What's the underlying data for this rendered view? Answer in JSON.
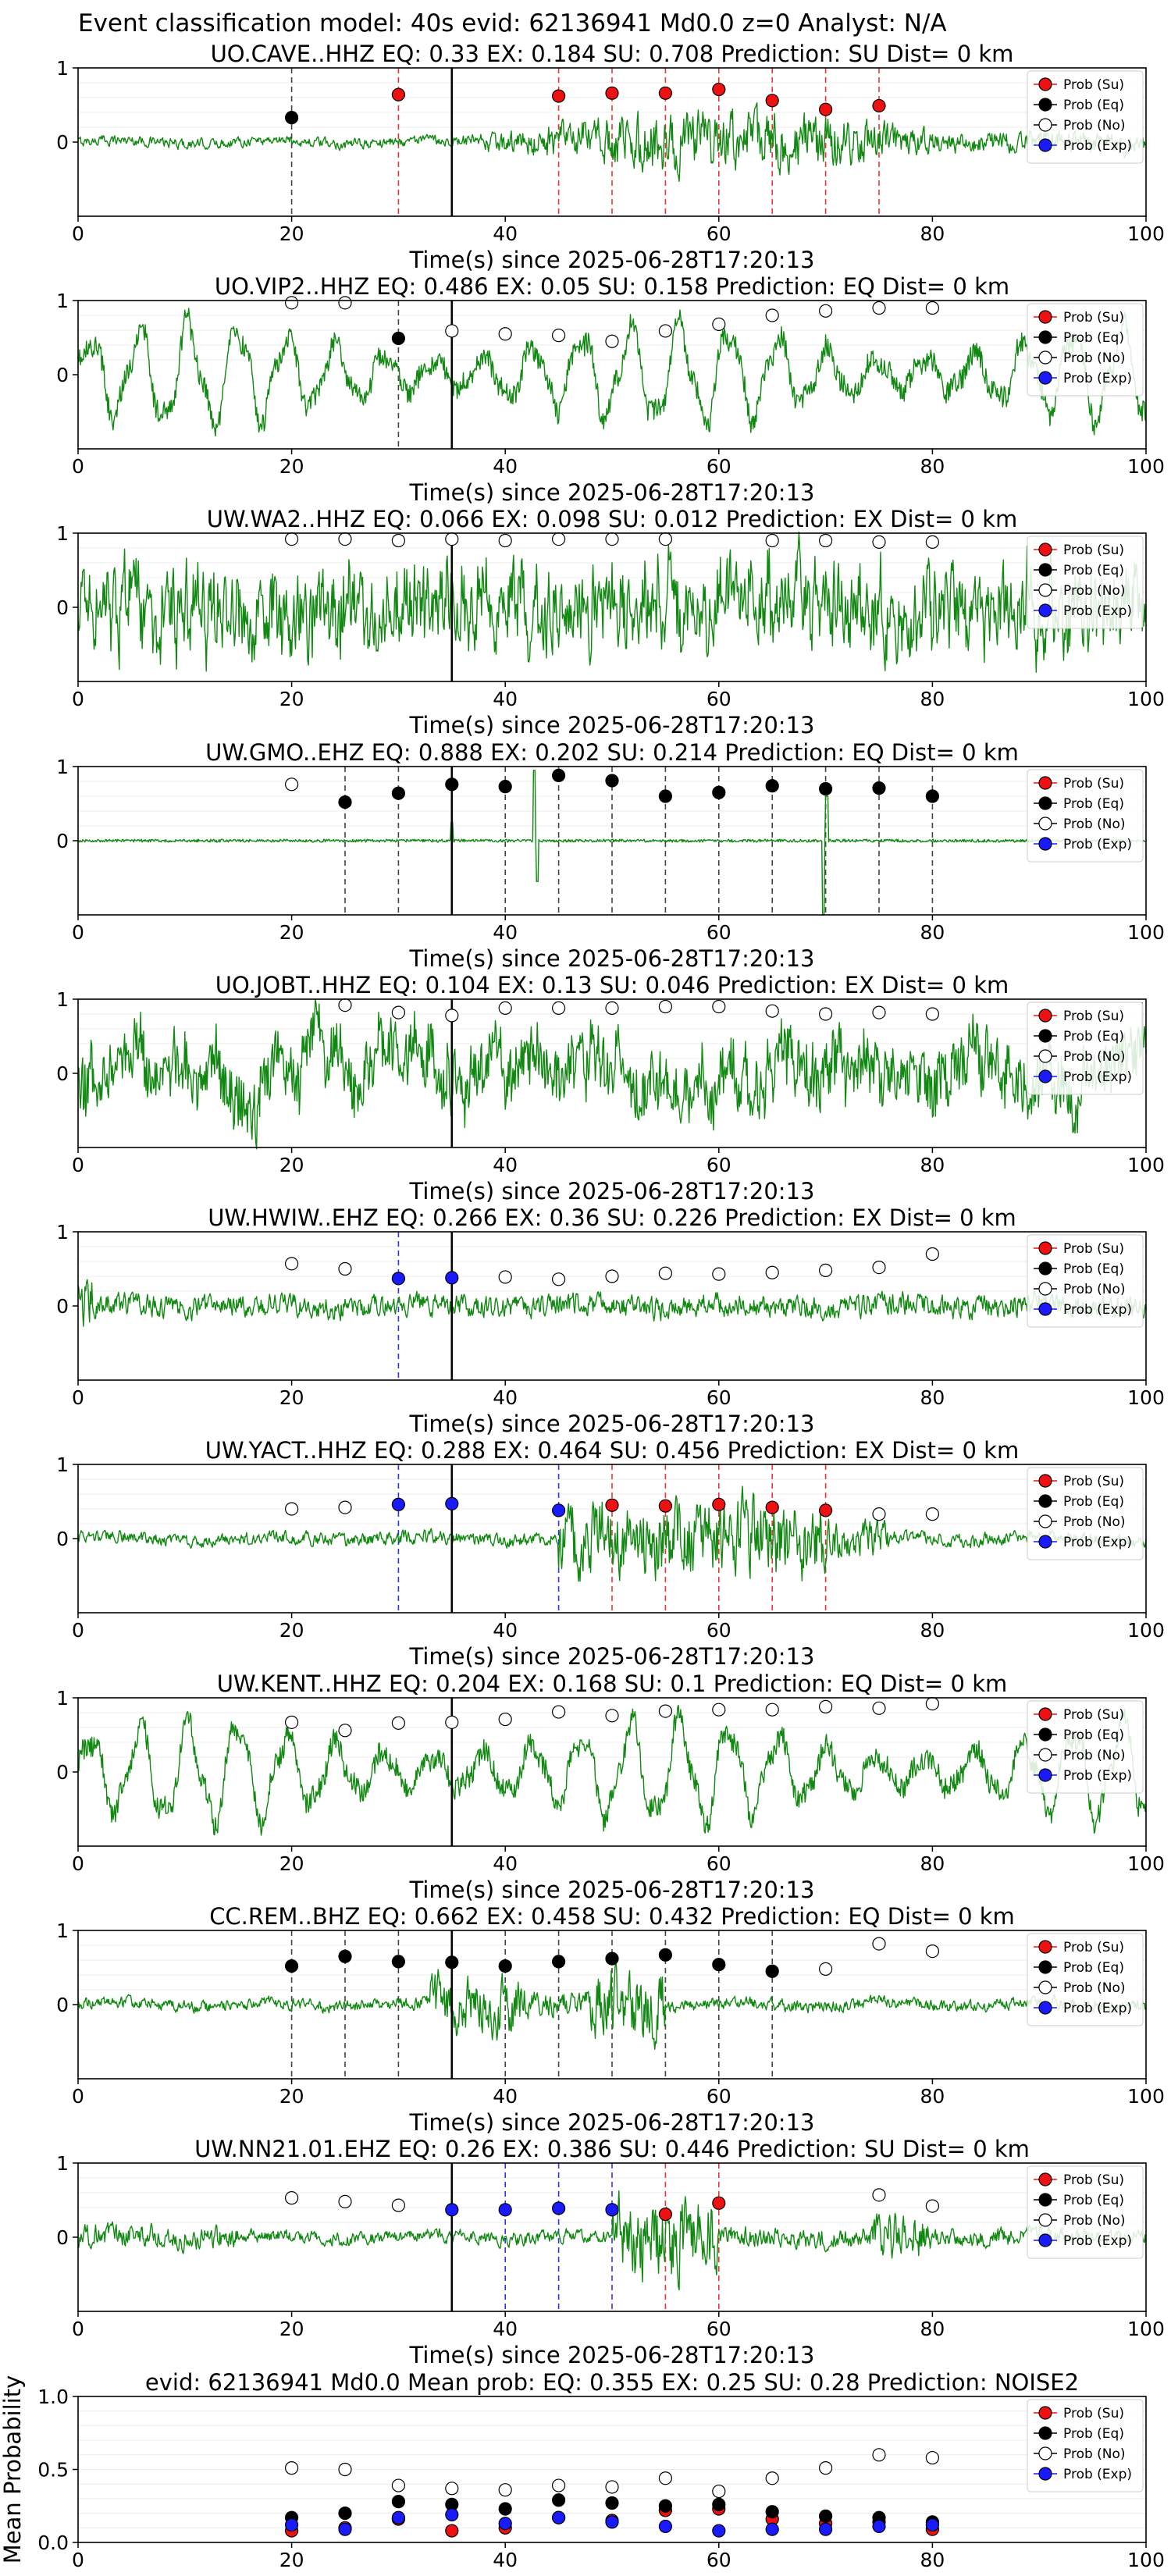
{
  "figure_title": "Event classification model: 40s evid: 62136941 Md0.0 z=0 Analyst: N/A",
  "xlabel": "Time(s) since 2025-06-28T17:20:13",
  "legend": [
    "Prob (Su)",
    "Prob (Eq)",
    "Prob (No)",
    "Prob (Exp)"
  ],
  "colors": {
    "su": "#ee1111",
    "eq": "#000000",
    "no": "#ffffff",
    "exp": "#1a1aff",
    "trace": "#118811"
  },
  "chart_data": [
    {
      "type": "line",
      "title": "UO.CAVE..HHZ   EQ: 0.33  EX: 0.184  SU: 0.708   Prediction: SU    Dist= 0 km",
      "xlim": [
        0,
        100
      ],
      "ylim": [
        -1,
        1
      ],
      "yticks": [
        "0",
        "1"
      ],
      "grid": true,
      "legend_position": "top-right",
      "pick_time": 35,
      "amplitude": 0.55,
      "character": "event-mid",
      "points": [
        {
          "x": 20,
          "y": 0.33,
          "cls": "eq"
        },
        {
          "x": 30,
          "y": 0.64,
          "cls": "su"
        },
        {
          "x": 45,
          "y": 0.62,
          "cls": "su"
        },
        {
          "x": 50,
          "y": 0.66,
          "cls": "su"
        },
        {
          "x": 55,
          "y": 0.66,
          "cls": "su"
        },
        {
          "x": 60,
          "y": 0.71,
          "cls": "su"
        },
        {
          "x": 65,
          "y": 0.56,
          "cls": "su"
        },
        {
          "x": 70,
          "y": 0.44,
          "cls": "su"
        },
        {
          "x": 75,
          "y": 0.49,
          "cls": "su"
        }
      ]
    },
    {
      "type": "line",
      "title": "UO.VIP2..HHZ   EQ: 0.486  EX: 0.05  SU: 0.158   Prediction: EQ    Dist= 0 km",
      "xlim": [
        0,
        100
      ],
      "ylim": [
        -1,
        1
      ],
      "yticks": [
        "0",
        "1"
      ],
      "grid": true,
      "legend_position": "top-right",
      "pick_time": 35,
      "amplitude": 0.85,
      "character": "oscillation",
      "points": [
        {
          "x": 20,
          "y": 0.97,
          "cls": "no"
        },
        {
          "x": 25,
          "y": 0.97,
          "cls": "no"
        },
        {
          "x": 30,
          "y": 0.49,
          "cls": "eq"
        },
        {
          "x": 35,
          "y": 0.59,
          "cls": "no"
        },
        {
          "x": 40,
          "y": 0.55,
          "cls": "no"
        },
        {
          "x": 45,
          "y": 0.53,
          "cls": "no"
        },
        {
          "x": 50,
          "y": 0.45,
          "cls": "no"
        },
        {
          "x": 55,
          "y": 0.59,
          "cls": "no"
        },
        {
          "x": 60,
          "y": 0.68,
          "cls": "no"
        },
        {
          "x": 65,
          "y": 0.8,
          "cls": "no"
        },
        {
          "x": 70,
          "y": 0.86,
          "cls": "no"
        },
        {
          "x": 75,
          "y": 0.9,
          "cls": "no"
        },
        {
          "x": 80,
          "y": 0.9,
          "cls": "no"
        }
      ]
    },
    {
      "type": "line",
      "title": "UW.WA2..HHZ   EQ: 0.066  EX: 0.098  SU: 0.012   Prediction: EX    Dist= 0 km",
      "xlim": [
        0,
        100
      ],
      "ylim": [
        -1,
        1
      ],
      "yticks": [
        "0",
        "1"
      ],
      "grid": true,
      "legend_position": "top-right",
      "pick_time": 35,
      "amplitude": 0.7,
      "character": "noise",
      "points": [
        {
          "x": 20,
          "y": 0.92,
          "cls": "no"
        },
        {
          "x": 25,
          "y": 0.92,
          "cls": "no"
        },
        {
          "x": 30,
          "y": 0.9,
          "cls": "no"
        },
        {
          "x": 35,
          "y": 0.92,
          "cls": "no"
        },
        {
          "x": 40,
          "y": 0.9,
          "cls": "no"
        },
        {
          "x": 45,
          "y": 0.92,
          "cls": "no"
        },
        {
          "x": 50,
          "y": 0.92,
          "cls": "no"
        },
        {
          "x": 55,
          "y": 0.92,
          "cls": "no"
        },
        {
          "x": 65,
          "y": 0.9,
          "cls": "no"
        },
        {
          "x": 70,
          "y": 0.9,
          "cls": "no"
        },
        {
          "x": 75,
          "y": 0.88,
          "cls": "no"
        },
        {
          "x": 80,
          "y": 0.88,
          "cls": "no"
        }
      ]
    },
    {
      "type": "line",
      "title": "UW.GMO..EHZ   EQ: 0.888  EX: 0.202  SU: 0.214   Prediction: EQ    Dist= 0 km",
      "xlim": [
        0,
        100
      ],
      "ylim": [
        -1,
        1
      ],
      "yticks": [
        "0",
        "1"
      ],
      "grid": true,
      "legend_position": "top-right",
      "pick_time": 35,
      "amplitude": 0.04,
      "character": "quiet-spikes",
      "points": [
        {
          "x": 20,
          "y": 0.76,
          "cls": "no"
        },
        {
          "x": 25,
          "y": 0.52,
          "cls": "eq"
        },
        {
          "x": 30,
          "y": 0.64,
          "cls": "eq"
        },
        {
          "x": 35,
          "y": 0.76,
          "cls": "eq"
        },
        {
          "x": 40,
          "y": 0.73,
          "cls": "eq"
        },
        {
          "x": 45,
          "y": 0.88,
          "cls": "eq"
        },
        {
          "x": 50,
          "y": 0.81,
          "cls": "eq"
        },
        {
          "x": 55,
          "y": 0.6,
          "cls": "eq"
        },
        {
          "x": 60,
          "y": 0.65,
          "cls": "eq"
        },
        {
          "x": 65,
          "y": 0.74,
          "cls": "eq"
        },
        {
          "x": 70,
          "y": 0.7,
          "cls": "eq"
        },
        {
          "x": 75,
          "y": 0.71,
          "cls": "eq"
        },
        {
          "x": 80,
          "y": 0.6,
          "cls": "eq"
        }
      ]
    },
    {
      "type": "line",
      "title": "UO.JOBT..HHZ   EQ: 0.104  EX: 0.13  SU: 0.046   Prediction: EX    Dist= 0 km",
      "xlim": [
        0,
        100
      ],
      "ylim": [
        -1,
        1
      ],
      "yticks": [
        "0",
        "1"
      ],
      "grid": true,
      "legend_position": "top-right",
      "pick_time": 35,
      "amplitude": 0.75,
      "character": "noise-slow",
      "points": [
        {
          "x": 25,
          "y": 0.92,
          "cls": "no"
        },
        {
          "x": 30,
          "y": 0.82,
          "cls": "no"
        },
        {
          "x": 35,
          "y": 0.78,
          "cls": "no"
        },
        {
          "x": 40,
          "y": 0.88,
          "cls": "no"
        },
        {
          "x": 45,
          "y": 0.88,
          "cls": "no"
        },
        {
          "x": 50,
          "y": 0.88,
          "cls": "no"
        },
        {
          "x": 55,
          "y": 0.9,
          "cls": "no"
        },
        {
          "x": 60,
          "y": 0.9,
          "cls": "no"
        },
        {
          "x": 65,
          "y": 0.84,
          "cls": "no"
        },
        {
          "x": 70,
          "y": 0.8,
          "cls": "no"
        },
        {
          "x": 75,
          "y": 0.82,
          "cls": "no"
        },
        {
          "x": 80,
          "y": 0.8,
          "cls": "no"
        }
      ]
    },
    {
      "type": "line",
      "title": "UW.HWIW..EHZ   EQ: 0.266  EX: 0.36  SU: 0.226   Prediction: EX    Dist= 0 km",
      "xlim": [
        0,
        100
      ],
      "ylim": [
        -1,
        1
      ],
      "yticks": [
        "0",
        "1"
      ],
      "grid": true,
      "legend_position": "top-right",
      "pick_time": 35,
      "amplitude": 0.22,
      "character": "low-noise",
      "points": [
        {
          "x": 20,
          "y": 0.57,
          "cls": "no"
        },
        {
          "x": 25,
          "y": 0.5,
          "cls": "no"
        },
        {
          "x": 30,
          "y": 0.37,
          "cls": "exp"
        },
        {
          "x": 35,
          "y": 0.38,
          "cls": "exp"
        },
        {
          "x": 40,
          "y": 0.39,
          "cls": "no"
        },
        {
          "x": 45,
          "y": 0.36,
          "cls": "no"
        },
        {
          "x": 50,
          "y": 0.4,
          "cls": "no"
        },
        {
          "x": 55,
          "y": 0.44,
          "cls": "no"
        },
        {
          "x": 60,
          "y": 0.43,
          "cls": "no"
        },
        {
          "x": 65,
          "y": 0.45,
          "cls": "no"
        },
        {
          "x": 70,
          "y": 0.48,
          "cls": "no"
        },
        {
          "x": 75,
          "y": 0.52,
          "cls": "no"
        },
        {
          "x": 80,
          "y": 0.7,
          "cls": "no"
        }
      ]
    },
    {
      "type": "line",
      "title": "UW.YACT..HHZ   EQ: 0.288  EX: 0.464  SU: 0.456   Prediction: EX    Dist= 0 km",
      "xlim": [
        0,
        100
      ],
      "ylim": [
        -1,
        1
      ],
      "yticks": [
        "0",
        "1"
      ],
      "grid": true,
      "legend_position": "top-right",
      "pick_time": 35,
      "amplitude": 0.18,
      "character": "burst-late",
      "points": [
        {
          "x": 20,
          "y": 0.4,
          "cls": "no"
        },
        {
          "x": 25,
          "y": 0.42,
          "cls": "no"
        },
        {
          "x": 30,
          "y": 0.46,
          "cls": "exp"
        },
        {
          "x": 35,
          "y": 0.47,
          "cls": "exp"
        },
        {
          "x": 45,
          "y": 0.38,
          "cls": "exp"
        },
        {
          "x": 50,
          "y": 0.45,
          "cls": "su"
        },
        {
          "x": 55,
          "y": 0.44,
          "cls": "su"
        },
        {
          "x": 60,
          "y": 0.46,
          "cls": "su"
        },
        {
          "x": 65,
          "y": 0.42,
          "cls": "su"
        },
        {
          "x": 70,
          "y": 0.38,
          "cls": "su"
        },
        {
          "x": 75,
          "y": 0.33,
          "cls": "no"
        },
        {
          "x": 80,
          "y": 0.33,
          "cls": "no"
        }
      ]
    },
    {
      "type": "line",
      "title": "UW.KENT..HHZ   EQ: 0.204  EX: 0.168  SU: 0.1   Prediction: EQ    Dist= 0 km",
      "xlim": [
        0,
        100
      ],
      "ylim": [
        -1,
        1
      ],
      "yticks": [
        "0",
        "1"
      ],
      "grid": true,
      "legend_position": "top-right",
      "pick_time": 35,
      "amplitude": 0.85,
      "character": "oscillation",
      "points": [
        {
          "x": 20,
          "y": 0.67,
          "cls": "no"
        },
        {
          "x": 25,
          "y": 0.56,
          "cls": "no"
        },
        {
          "x": 30,
          "y": 0.66,
          "cls": "no"
        },
        {
          "x": 35,
          "y": 0.67,
          "cls": "no"
        },
        {
          "x": 40,
          "y": 0.71,
          "cls": "no"
        },
        {
          "x": 45,
          "y": 0.81,
          "cls": "no"
        },
        {
          "x": 50,
          "y": 0.76,
          "cls": "no"
        },
        {
          "x": 55,
          "y": 0.82,
          "cls": "no"
        },
        {
          "x": 60,
          "y": 0.84,
          "cls": "no"
        },
        {
          "x": 65,
          "y": 0.84,
          "cls": "no"
        },
        {
          "x": 70,
          "y": 0.88,
          "cls": "no"
        },
        {
          "x": 75,
          "y": 0.86,
          "cls": "no"
        },
        {
          "x": 80,
          "y": 0.92,
          "cls": "no"
        }
      ]
    },
    {
      "type": "line",
      "title": "CC.REM..BHZ   EQ: 0.662  EX: 0.458  SU: 0.432   Prediction: EQ    Dist= 0 km",
      "xlim": [
        0,
        100
      ],
      "ylim": [
        -1,
        1
      ],
      "yticks": [
        "0",
        "1"
      ],
      "grid": true,
      "legend_position": "top-right",
      "pick_time": 35,
      "amplitude": 0.12,
      "character": "event-early",
      "points": [
        {
          "x": 20,
          "y": 0.52,
          "cls": "eq"
        },
        {
          "x": 25,
          "y": 0.65,
          "cls": "eq"
        },
        {
          "x": 30,
          "y": 0.58,
          "cls": "eq"
        },
        {
          "x": 35,
          "y": 0.57,
          "cls": "eq"
        },
        {
          "x": 40,
          "y": 0.52,
          "cls": "eq"
        },
        {
          "x": 45,
          "y": 0.58,
          "cls": "eq"
        },
        {
          "x": 50,
          "y": 0.62,
          "cls": "eq"
        },
        {
          "x": 55,
          "y": 0.67,
          "cls": "eq"
        },
        {
          "x": 60,
          "y": 0.54,
          "cls": "eq"
        },
        {
          "x": 65,
          "y": 0.45,
          "cls": "eq"
        },
        {
          "x": 70,
          "y": 0.48,
          "cls": "no"
        },
        {
          "x": 75,
          "y": 0.82,
          "cls": "no"
        },
        {
          "x": 80,
          "y": 0.72,
          "cls": "no"
        }
      ]
    },
    {
      "type": "line",
      "title": "UW.NN21.01.EHZ   EQ: 0.26  EX: 0.386  SU: 0.446   Prediction: SU    Dist= 0 km",
      "xlim": [
        0,
        100
      ],
      "ylim": [
        -1,
        1
      ],
      "yticks": [
        "0",
        "1"
      ],
      "grid": true,
      "legend_position": "top-right",
      "pick_time": 35,
      "amplitude": 0.14,
      "character": "burst-mid",
      "points": [
        {
          "x": 20,
          "y": 0.53,
          "cls": "no"
        },
        {
          "x": 25,
          "y": 0.48,
          "cls": "no"
        },
        {
          "x": 30,
          "y": 0.43,
          "cls": "no"
        },
        {
          "x": 35,
          "y": 0.37,
          "cls": "exp"
        },
        {
          "x": 40,
          "y": 0.37,
          "cls": "exp"
        },
        {
          "x": 45,
          "y": 0.39,
          "cls": "exp"
        },
        {
          "x": 50,
          "y": 0.37,
          "cls": "exp"
        },
        {
          "x": 55,
          "y": 0.31,
          "cls": "su"
        },
        {
          "x": 60,
          "y": 0.46,
          "cls": "su"
        },
        {
          "x": 75,
          "y": 0.57,
          "cls": "no"
        },
        {
          "x": 80,
          "y": 0.42,
          "cls": "no"
        }
      ]
    },
    {
      "type": "scatter",
      "title": "evid: 62136941  Md0.0   Mean prob:   EQ: 0.355  EX: 0.25  SU: 0.28   Prediction: NOISE2",
      "xlim": [
        0,
        100
      ],
      "ylim": [
        0,
        1
      ],
      "yticks": [
        "0.0",
        "0.5",
        "1.0"
      ],
      "xticks": [
        "0",
        "20",
        "40",
        "60",
        "80",
        "100"
      ],
      "ylabel": "Mean Probability",
      "grid": true,
      "legend_position": "top-right",
      "series": [
        {
          "name": "Prob (Su)",
          "key": "su",
          "x": [
            20,
            25,
            30,
            35,
            40,
            45,
            50,
            55,
            60,
            65,
            70,
            75,
            80
          ],
          "values": [
            0.08,
            0.1,
            0.16,
            0.08,
            0.1,
            0.17,
            0.15,
            0.22,
            0.23,
            0.16,
            0.13,
            0.14,
            0.09
          ]
        },
        {
          "name": "Prob (Eq)",
          "key": "eq",
          "x": [
            20,
            25,
            30,
            35,
            40,
            45,
            50,
            55,
            60,
            65,
            70,
            75,
            80
          ],
          "values": [
            0.17,
            0.2,
            0.28,
            0.26,
            0.23,
            0.29,
            0.27,
            0.25,
            0.26,
            0.21,
            0.18,
            0.17,
            0.14
          ]
        },
        {
          "name": "Prob (No)",
          "key": "no",
          "x": [
            20,
            25,
            30,
            35,
            40,
            45,
            50,
            55,
            60,
            65,
            70,
            75,
            80
          ],
          "values": [
            0.51,
            0.5,
            0.39,
            0.37,
            0.36,
            0.39,
            0.38,
            0.44,
            0.35,
            0.44,
            0.51,
            0.6,
            0.58
          ]
        },
        {
          "name": "Prob (Exp)",
          "key": "exp",
          "x": [
            20,
            25,
            30,
            35,
            40,
            45,
            50,
            55,
            60,
            65,
            70,
            75,
            80
          ],
          "values": [
            0.12,
            0.09,
            0.17,
            0.19,
            0.13,
            0.17,
            0.14,
            0.11,
            0.08,
            0.09,
            0.09,
            0.11,
            0.12
          ]
        }
      ]
    }
  ]
}
